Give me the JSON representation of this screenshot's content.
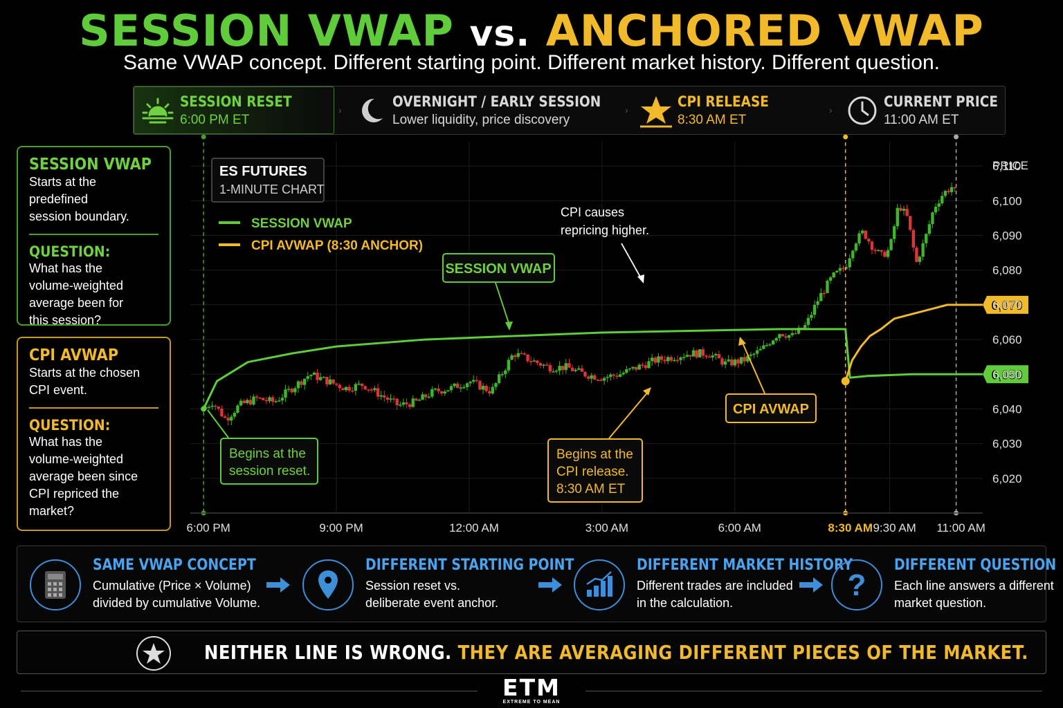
{
  "header": {
    "title_part1": "SESSION VWAP",
    "title_vs": "vs.",
    "title_part2": "ANCHORED VWAP",
    "subtitle": "Same VWAP concept. Different starting point. Different market history. Different question."
  },
  "timeline": [
    {
      "title": "SESSION RESET",
      "sub": "6:00 PM ET",
      "icon": "sunrise-icon",
      "color": "#6fd13f"
    },
    {
      "title": "OVERNIGHT / EARLY SESSION",
      "sub": "Lower liquidity, price discovery",
      "icon": "moon-icon",
      "color": "#d8d8d8"
    },
    {
      "title": "CPI RELEASE",
      "sub": "8:30 AM ET",
      "icon": "star-icon",
      "color": "#f2b928"
    },
    {
      "title": "CURRENT PRICE",
      "sub": "11:00 AM ET",
      "icon": "clock-icon",
      "color": "#d8d8d8"
    }
  ],
  "session_card": {
    "title": "SESSION VWAP",
    "desc": [
      "Starts at the predefined",
      "session boundary."
    ],
    "question_label": "QUESTION:",
    "question": [
      "What has the",
      "volume-weighted",
      "average been for",
      "this session?"
    ]
  },
  "cpi_card": {
    "title": "CPI AVWAP",
    "desc": [
      "Starts at the chosen",
      "CPI event."
    ],
    "question_label": "QUESTION:",
    "question": [
      "What has the",
      "volume-weighted",
      "average been since",
      "CPI repriced the",
      "market?"
    ]
  },
  "chart_data": {
    "type": "line",
    "instrument_box": {
      "line1": "ES FUTURES",
      "line2": "1-MINUTE CHART"
    },
    "ylabel": "PRICE",
    "ylim": [
      6010,
      6117
    ],
    "y_ticks": [
      "6,110",
      "6,100",
      "6,090",
      "6,080",
      "6,070",
      "6,060",
      "6,050",
      "6,040",
      "6,030",
      "6,020"
    ],
    "y_tick_values": [
      6110,
      6100,
      6090,
      6080,
      6070,
      6060,
      6050,
      6040,
      6030,
      6020
    ],
    "x_ticks": [
      "6:00 PM",
      "9:00 PM",
      "12:00 AM",
      "3:00 AM",
      "6:00 AM",
      "8:30 AM",
      "9:30 AM",
      "11:00 AM"
    ],
    "x_tick_hours": [
      0,
      3,
      6,
      9,
      12,
      14.5,
      15.5,
      17
    ],
    "xlim_hours": [
      -0.3,
      17.6
    ],
    "legend": [
      {
        "name": "SESSION VWAP",
        "color": "#5fcd3a"
      },
      {
        "name": "CPI AVWAP (8:30 ANCHOR)",
        "color": "#f2b928"
      }
    ],
    "series": [
      {
        "name": "SESSION VWAP",
        "color": "#5fcd3a",
        "x_hours": [
          0,
          0.3,
          1,
          2,
          3,
          5,
          7,
          9,
          11,
          13,
          14.5,
          14.6,
          15,
          16,
          17,
          17.6
        ],
        "values": [
          6040,
          6048,
          6053.5,
          6056,
          6058,
          6060,
          6061,
          6062,
          6062.5,
          6063,
          6063,
          6049,
          6049.5,
          6050,
          6050,
          6050
        ]
      },
      {
        "name": "CPI AVWAP (8:30 ANCHOR)",
        "color": "#f2b928",
        "x_hours": [
          14.5,
          14.65,
          14.85,
          15.05,
          15.3,
          15.6,
          15.9,
          16.2,
          16.5,
          16.8,
          17,
          17.3,
          17.6
        ],
        "values": [
          6048,
          6054,
          6058,
          6061,
          6063,
          6066,
          6067,
          6068,
          6069,
          6070,
          6070,
          6070,
          6070
        ]
      }
    ],
    "price_path_hours": [
      0,
      0.2,
      0.5,
      0.8,
      1.2,
      1.6,
      2.0,
      2.4,
      2.8,
      3.2,
      3.6,
      4.0,
      4.4,
      4.8,
      5.2,
      5.6,
      6.0,
      6.5,
      7.0,
      7.4,
      7.8,
      8.2,
      8.6,
      9.0,
      9.4,
      9.8,
      10.2,
      10.6,
      11.0,
      11.4,
      11.8,
      12.2,
      12.6,
      13.0,
      13.3,
      13.6,
      13.9,
      14.2,
      14.5,
      14.7,
      14.9,
      15.1,
      15.3,
      15.5,
      15.7,
      15.9,
      16.1,
      16.3,
      16.5,
      16.7,
      16.9,
      17.0
    ],
    "price_path": [
      6040,
      6042,
      6037,
      6041,
      6043,
      6042,
      6046,
      6050,
      6048,
      6046,
      6047,
      6044,
      6041,
      6042,
      6045,
      6046,
      6048,
      6045,
      6056,
      6054,
      6052,
      6052,
      6050,
      6049,
      6050,
      6052,
      6054,
      6055,
      6056,
      6056,
      6053,
      6054,
      6057,
      6062,
      6061,
      6064,
      6072,
      6078,
      6081,
      6088,
      6091,
      6087,
      6084,
      6086,
      6099,
      6095,
      6082,
      6089,
      6098,
      6102,
      6104,
      6102
    ],
    "anchor_point": {
      "x_hour": 14.5,
      "value": 6048
    },
    "value_labels": [
      {
        "text": "6,070",
        "value": 6070,
        "color": "#f2b928"
      },
      {
        "text": "6,050",
        "value": 6050,
        "color": "#5fcd3a"
      }
    ],
    "annotations": {
      "session_vwap_label": "SESSION VWAP",
      "cpi_avwap_label": "CPI AVWAP",
      "begins_session": [
        "Begins at the",
        "session reset."
      ],
      "begins_cpi": [
        "Begins at the",
        "CPI release.",
        "8:30 AM ET"
      ],
      "cpi_note": [
        "CPI causes",
        "repricing higher."
      ]
    },
    "grid": true
  },
  "bottom_bar": [
    {
      "title": "SAME VWAP CONCEPT",
      "desc": [
        "Cumulative (Price × Volume)",
        "divided by cumulative Volume."
      ],
      "icon": "calculator-icon"
    },
    {
      "title": "DIFFERENT STARTING POINT",
      "desc": [
        "Session reset vs.",
        "deliberate event anchor."
      ],
      "icon": "location-pin-icon"
    },
    {
      "title": "DIFFERENT MARKET HISTORY",
      "desc": [
        "Different trades are included",
        "in the calculation."
      ],
      "icon": "bar-chart-icon"
    },
    {
      "title": "DIFFERENT QUESTION",
      "desc": [
        "Each line answers a different",
        "market question."
      ],
      "icon": "question-icon"
    }
  ],
  "verdict": {
    "part1": "NEITHER LINE IS WRONG.",
    "part2": "THEY ARE AVERAGING DIFFERENT PIECES OF THE MARKET."
  },
  "footer": {
    "logo": "ETM",
    "tagline": "EXTREME TO MEAN"
  },
  "colors": {
    "green": "#5fcd3a",
    "gold": "#f2b928",
    "blue": "#4aa3ef",
    "red": "#e0323a"
  }
}
